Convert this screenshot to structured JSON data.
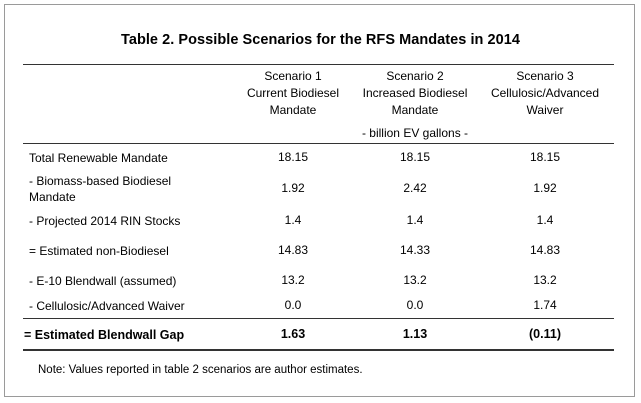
{
  "table": {
    "title": "Table 2. Possible Scenarios for the RFS Mandates in 2014",
    "columns": [
      {
        "line1": "Scenario 1",
        "line2": "Current Biodiesel",
        "line3": "Mandate"
      },
      {
        "line1": "Scenario 2",
        "line2": "Increased Biodiesel",
        "line3": "Mandate"
      },
      {
        "line1": "Scenario 3",
        "line2": "Cellulosic/Advanced",
        "line3": "Waiver"
      }
    ],
    "unit": "- billion EV gallons -",
    "rows": [
      {
        "label_1": "Total Renewable Mandate",
        "label_2": "",
        "values": [
          "18.15",
          "18.15",
          "18.15"
        ]
      },
      {
        "label_1": " - Biomass-based Biodiesel",
        "label_2": "Mandate",
        "values": [
          "1.92",
          "2.42",
          "1.92"
        ]
      },
      {
        "label_1": " - Projected 2014 RIN Stocks",
        "label_2": "",
        "values": [
          "1.4",
          "1.4",
          "1.4"
        ]
      },
      {
        "label_1": "= Estimated non-Biodiesel",
        "label_2": "",
        "values": [
          "14.83",
          "14.33",
          "14.83"
        ]
      },
      {
        "label_1": " - E-10 Blendwall (assumed)",
        "label_2": "",
        "values": [
          "13.2",
          "13.2",
          "13.2"
        ]
      },
      {
        "label_1": " - Cellulosic/Advanced Waiver",
        "label_2": "",
        "values": [
          "0.0",
          "0.0",
          "1.74"
        ]
      }
    ],
    "total_row": {
      "label": "=  Estimated Blendwall Gap",
      "values": [
        "1.63",
        "1.13",
        "(0.11)"
      ]
    },
    "note": "Note: Values reported in table 2 scenarios are author estimates."
  }
}
